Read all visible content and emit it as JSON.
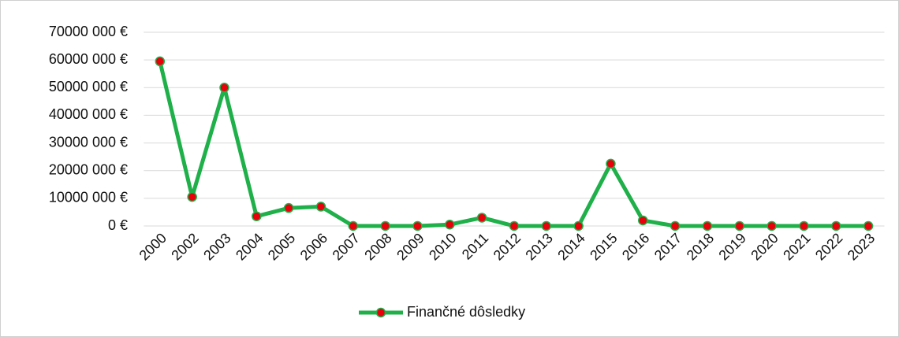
{
  "chart_data": {
    "type": "line",
    "categories": [
      "2000",
      "2002",
      "2003",
      "2004",
      "2005",
      "2006",
      "2007",
      "2008",
      "2009",
      "2010",
      "2011",
      "2012",
      "2013",
      "2014",
      "2015",
      "2016",
      "2017",
      "2018",
      "2019",
      "2020",
      "2021",
      "2022",
      "2023"
    ],
    "series": [
      {
        "name": "Finančné dôsledky",
        "color": "#1fb04a",
        "marker_color": "#e8000b",
        "values": [
          59500000,
          10500000,
          50000000,
          3500000,
          6500000,
          7000000,
          0,
          0,
          0,
          500000,
          3000000,
          0,
          0,
          0,
          22500000,
          2000000,
          0,
          0,
          0,
          0,
          0,
          0,
          0
        ]
      }
    ],
    "ylim": [
      0,
      70000000
    ],
    "yticks": [
      {
        "value": 0,
        "label": "0 €"
      },
      {
        "value": 10000000,
        "label": "10000 000 €"
      },
      {
        "value": 20000000,
        "label": "20000 000 €"
      },
      {
        "value": 30000000,
        "label": "30000 000 €"
      },
      {
        "value": 40000000,
        "label": "40000 000 €"
      },
      {
        "value": 50000000,
        "label": "50000 000 €"
      },
      {
        "value": 60000000,
        "label": "60000 000 €"
      },
      {
        "value": 70000000,
        "label": "70000 000 €"
      }
    ],
    "grid": true,
    "legend": "bottom"
  }
}
